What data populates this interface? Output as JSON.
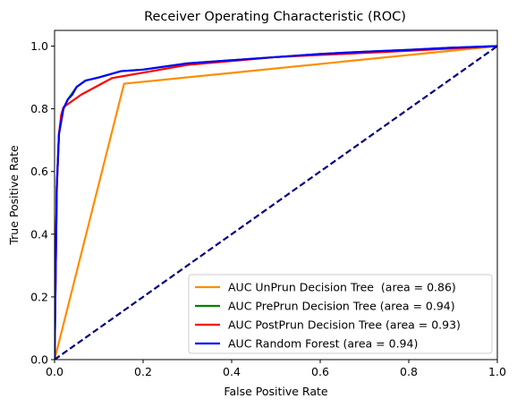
{
  "chart_data": {
    "type": "line",
    "title": "Receiver Operating Characteristic (ROC)",
    "xlabel": "False Positive Rate",
    "ylabel": "True Positive Rate",
    "xlim": [
      0.0,
      1.0
    ],
    "ylim": [
      0.0,
      1.05
    ],
    "xticks": [
      "0.0",
      "0.2",
      "0.4",
      "0.6",
      "0.8",
      "1.0"
    ],
    "yticks": [
      "0.0",
      "0.2",
      "0.4",
      "0.6",
      "0.8",
      "1.0"
    ],
    "grid": false,
    "legend_position": "lower-right",
    "series": [
      {
        "name": "AUC UnPrun Decision Tree  (area = 0.86)",
        "color": "#ff8c00",
        "style": "solid",
        "x": [
          0.0,
          0.157,
          1.0
        ],
        "y": [
          0.0,
          0.88,
          1.0
        ]
      },
      {
        "name": "AUC PrePrun Decision Tree (area = 0.94)",
        "color": "#008000",
        "style": "solid",
        "x": [
          0.0,
          0.005,
          0.01,
          0.02,
          0.03,
          0.05,
          0.07,
          0.1,
          0.15,
          0.2,
          0.25,
          0.3,
          0.4,
          0.5,
          0.6,
          0.7,
          0.8,
          0.9,
          1.0
        ],
        "y": [
          0.0,
          0.55,
          0.72,
          0.8,
          0.83,
          0.87,
          0.89,
          0.9,
          0.92,
          0.925,
          0.935,
          0.945,
          0.955,
          0.965,
          0.975,
          0.982,
          0.988,
          0.995,
          1.0
        ]
      },
      {
        "name": "AUC PostPrun Decision Tree (area = 0.93)",
        "color": "#ff0000",
        "style": "solid",
        "x": [
          0.0,
          0.005,
          0.01,
          0.015,
          0.02,
          0.06,
          0.13,
          0.3,
          0.5,
          0.8,
          1.0
        ],
        "y": [
          0.0,
          0.55,
          0.72,
          0.78,
          0.805,
          0.845,
          0.898,
          0.94,
          0.965,
          0.985,
          1.0
        ]
      },
      {
        "name": "AUC Random Forest (area = 0.94)",
        "color": "#0000ff",
        "style": "solid",
        "x": [
          0.0,
          0.005,
          0.01,
          0.02,
          0.03,
          0.04,
          0.05,
          0.06,
          0.07,
          0.1,
          0.15,
          0.2,
          0.25,
          0.3,
          0.4,
          0.5,
          0.6,
          0.7,
          0.8,
          0.9,
          1.0
        ],
        "y": [
          0.0,
          0.55,
          0.72,
          0.8,
          0.83,
          0.845,
          0.87,
          0.88,
          0.89,
          0.9,
          0.92,
          0.925,
          0.935,
          0.945,
          0.955,
          0.965,
          0.975,
          0.982,
          0.988,
          0.995,
          1.0
        ]
      },
      {
        "name": "",
        "color": "#000080",
        "style": "dashed",
        "x": [
          0.0,
          1.0
        ],
        "y": [
          0.0,
          1.0
        ]
      }
    ]
  }
}
